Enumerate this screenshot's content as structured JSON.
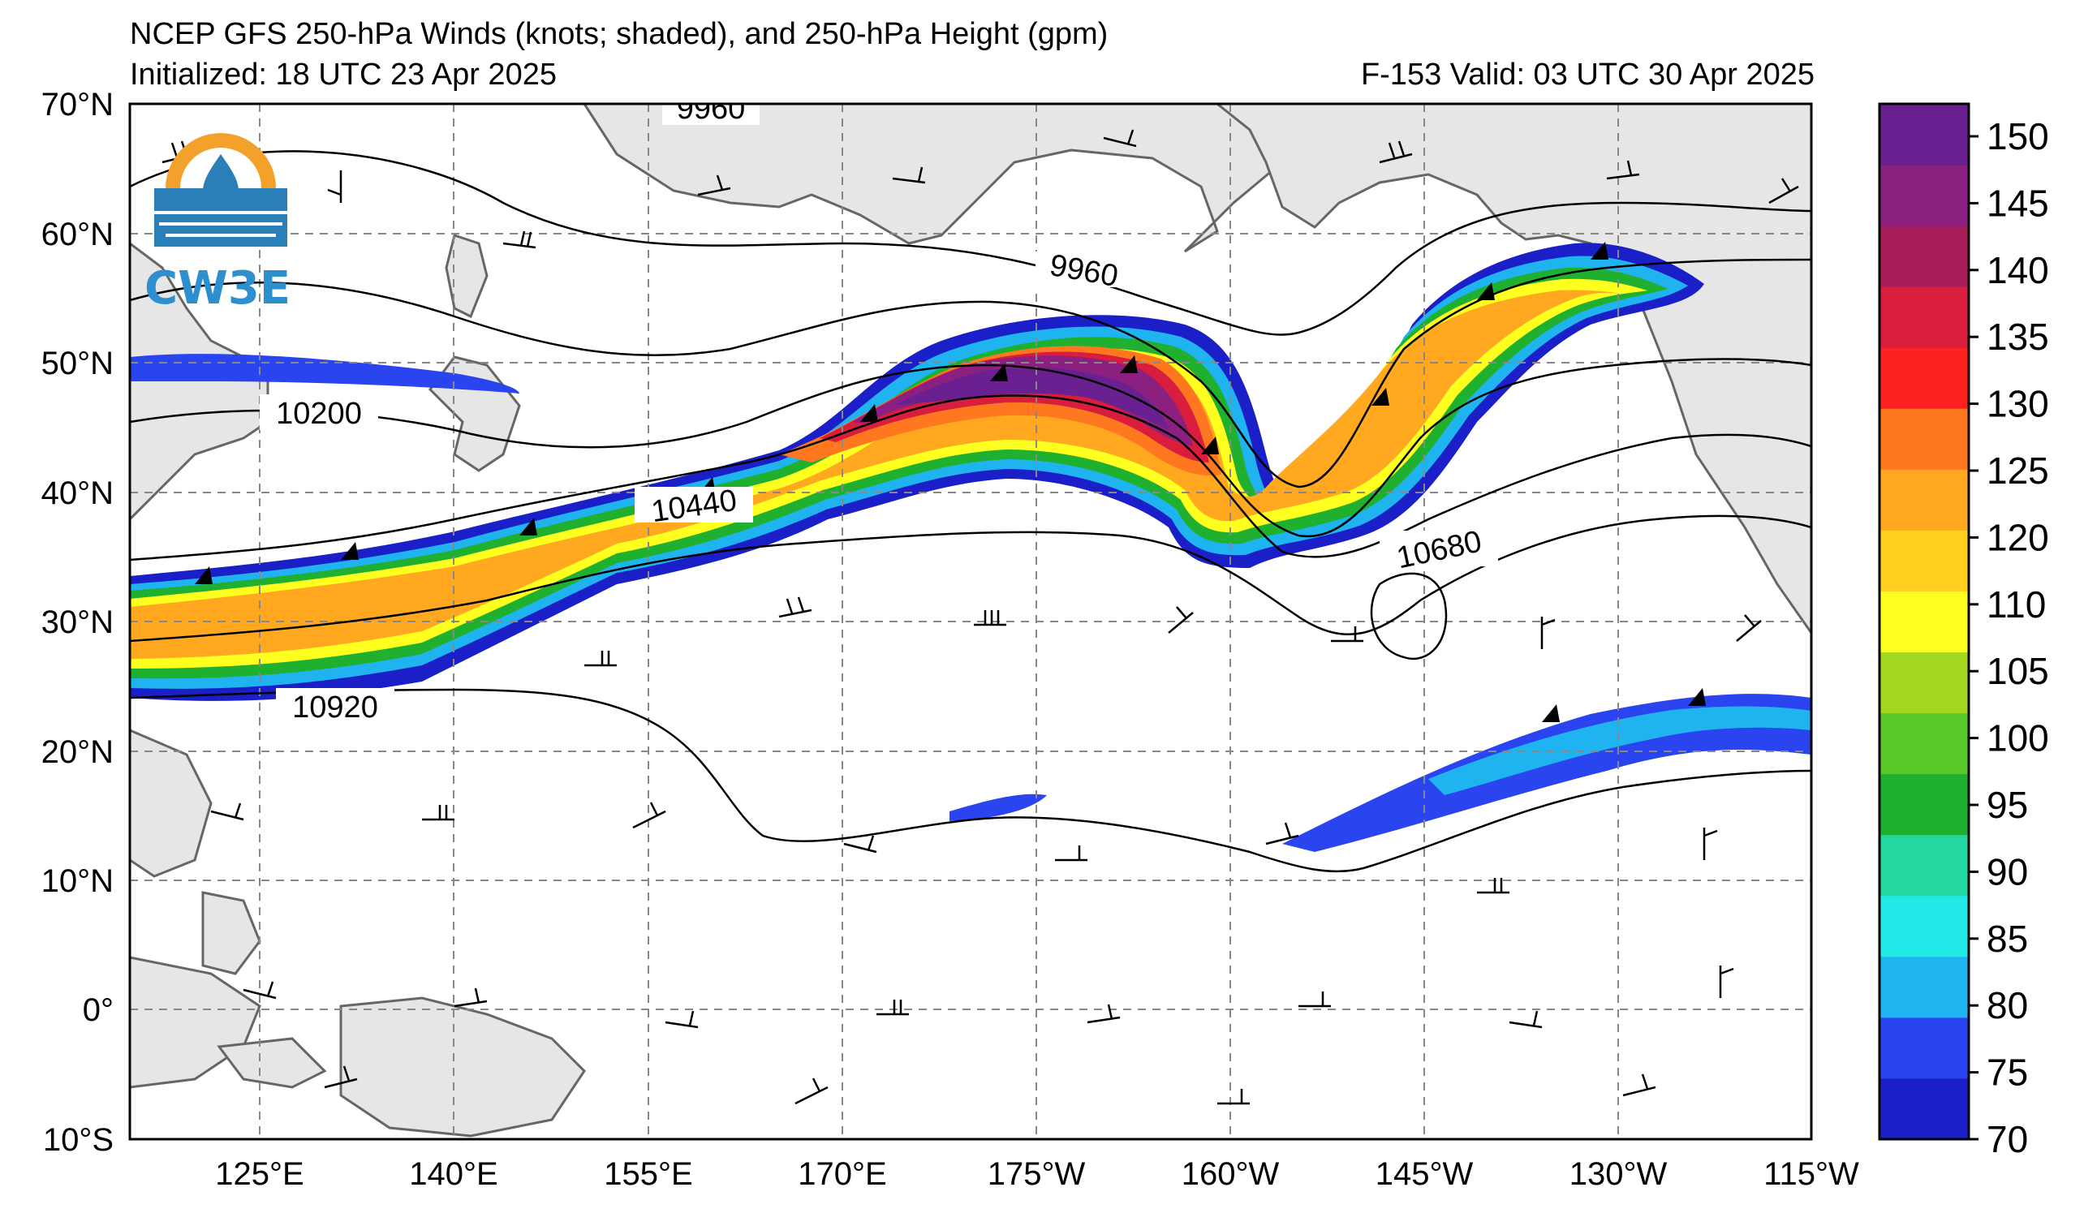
{
  "header": {
    "title": "NCEP GFS 250-hPa Winds (knots; shaded), and 250-hPa Height (gpm)",
    "initialized": "Initialized: 18 UTC 23 Apr 2025",
    "valid": "F-153  Valid: 03 UTC 30 Apr 2025"
  },
  "logo": {
    "text": "CW3E"
  },
  "map": {
    "lat_labels": [
      "70°N",
      "60°N",
      "50°N",
      "40°N",
      "30°N",
      "20°N",
      "10°N",
      "0°",
      "10°S"
    ],
    "lon_labels": [
      "125°E",
      "140°E",
      "155°E",
      "170°E",
      "175°W",
      "160°W",
      "145°W",
      "130°W",
      "115°W"
    ],
    "lat_range": [
      -10,
      70
    ],
    "lon_range": [
      "115°E",
      "115°W"
    ],
    "grid": true,
    "height_contour_labels": [
      "9960",
      "9960",
      "10200",
      "10440",
      "10680",
      "10920"
    ]
  },
  "colorbar": {
    "units": "knots",
    "ticks": [
      "70",
      "75",
      "80",
      "85",
      "90",
      "95",
      "100",
      "105",
      "110",
      "120",
      "125",
      "130",
      "135",
      "140",
      "145",
      "150"
    ],
    "colors": [
      "#1b1fc7",
      "#2a44f0",
      "#1fb4f0",
      "#22e8e8",
      "#22d8a0",
      "#20b030",
      "#5ac828",
      "#a4d820",
      "#ffff20",
      "#ffd020",
      "#ffa820",
      "#ff7820",
      "#ff2020",
      "#d81e3c",
      "#a81e58",
      "#8c2080",
      "#6a2090"
    ]
  },
  "chart_data": {
    "type": "heatmap",
    "title": "NCEP GFS 250-hPa Winds (knots; shaded), and 250-hPa Height (gpm)",
    "variable": "250-hPa wind speed (knots, shaded ≥70) with 250-hPa geopotential height contours (gpm) and wind barbs",
    "colorbar_range": [
      70,
      155
    ],
    "contour_labels_gpm": [
      9960,
      10200,
      10440,
      10680,
      10920
    ]
  }
}
